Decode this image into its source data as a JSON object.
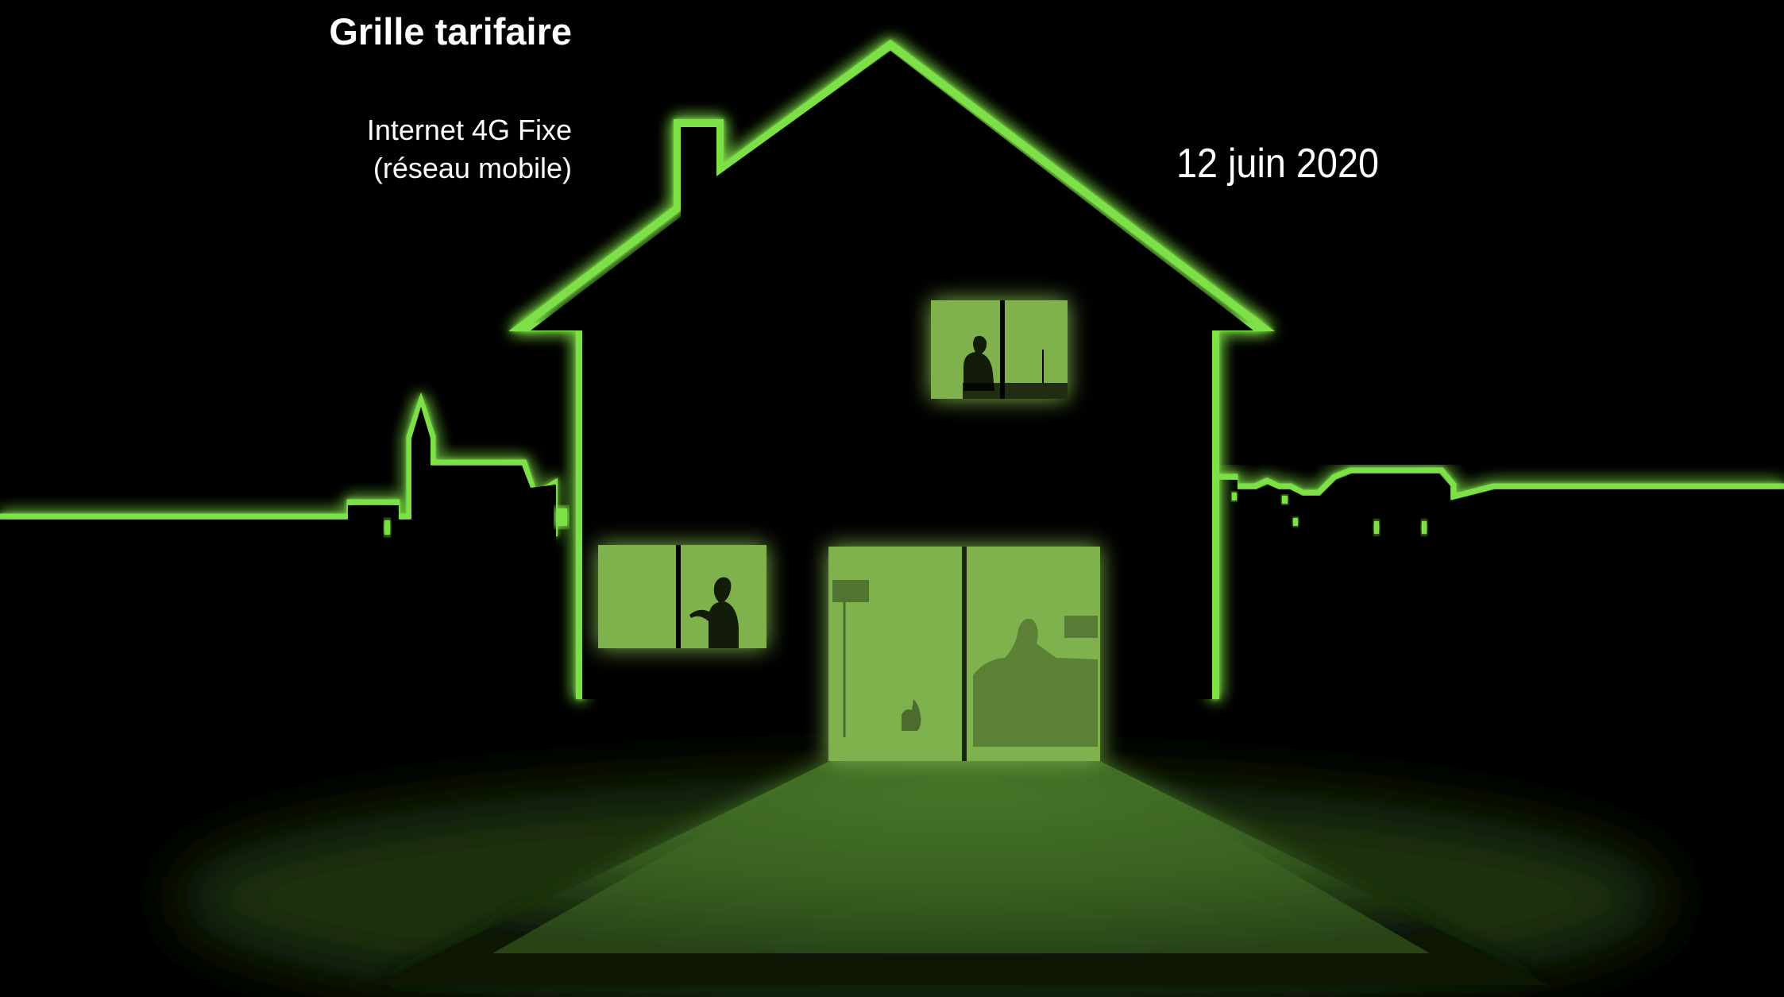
{
  "header": {
    "title": "Grille tarifaire",
    "subtitle_line1": "Internet 4G Fixe",
    "subtitle_line2": "(réseau mobile)",
    "date": "12 juin 2020"
  },
  "illustration": {
    "subject": "glowing-house-silhouette-at-night",
    "colors": {
      "background": "#000000",
      "glow": "#7ee04a",
      "window_fill": "#7fb24c",
      "ground_light": "#3f6a25"
    }
  }
}
